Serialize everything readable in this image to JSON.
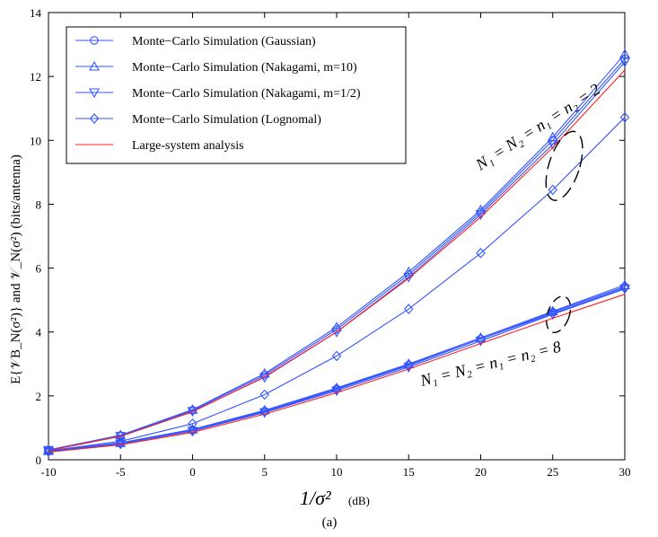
{
  "chart_data": {
    "type": "line",
    "xlabel_main": "1/σ²",
    "xlabel_unit": "(dB)",
    "ylabel": "E{𝒱B_N(σ²)}  and  𝒱_N(σ²)    (bits/antenna)",
    "ylabel_left": "E{𝒱",
    "ylabel_sub": "B",
    "ylabel_subsub": "N",
    "ylabel_rest": "(σ²)}  and  𝒱",
    "ylabel_sub2": "N",
    "ylabel_end": "(σ²)     (bits/antenna)",
    "caption": "(a)",
    "x": [
      -10,
      -5,
      0,
      5,
      10,
      15,
      20,
      25,
      30
    ],
    "xticks": [
      "-10",
      "-5",
      "0",
      "5",
      "10",
      "15",
      "20",
      "25",
      "30"
    ],
    "yticks": [
      "0",
      "2",
      "4",
      "6",
      "8",
      "10",
      "12",
      "14"
    ],
    "xlim": [
      -10,
      30
    ],
    "ylim": [
      0,
      14
    ],
    "legend": {
      "position": "top-left",
      "entries": [
        {
          "label": "Monte−Carlo Simulation (Gaussian)",
          "marker": "circle",
          "color": "#3355ff"
        },
        {
          "label": "Monte−Carlo Simulation (Nakagami, m=10)",
          "marker": "triangle-up",
          "color": "#3355ff"
        },
        {
          "label": "Monte−Carlo Simulation (Nakagami, m=1/2)",
          "marker": "triangle-down",
          "color": "#3355ff"
        },
        {
          "label": "Monte−Carlo Simulation (Lognomal)",
          "marker": "diamond",
          "color": "#3355ff"
        },
        {
          "label": "Large-system analysis",
          "marker": "none",
          "color": "#ff2020"
        }
      ]
    },
    "annotations": [
      {
        "text": "N₁ = N₂ = n₁ = n₂ = 2"
      },
      {
        "text": "N₁ = N₂ = n₁ = n₂ = 8"
      }
    ],
    "series": [
      {
        "name": "Gaussian N=2",
        "marker": "circle",
        "color": "#3355ff",
        "values": [
          0.31,
          0.76,
          1.55,
          2.65,
          4.08,
          5.8,
          7.75,
          10.0,
          12.55
        ]
      },
      {
        "name": "Nakagami m=10 N=2",
        "marker": "triangle-up",
        "color": "#3355ff",
        "values": [
          0.31,
          0.77,
          1.57,
          2.7,
          4.15,
          5.88,
          7.82,
          10.1,
          12.7
        ]
      },
      {
        "name": "Nakagami m=1/2 N=2",
        "marker": "triangle-down",
        "color": "#3355ff",
        "values": [
          0.3,
          0.74,
          1.52,
          2.58,
          4.0,
          5.72,
          7.68,
          9.88,
          12.45
        ]
      },
      {
        "name": "Lognormal N=2",
        "marker": "diamond",
        "color": "#3355ff",
        "values": [
          0.28,
          0.58,
          1.13,
          2.04,
          3.25,
          4.72,
          6.47,
          8.45,
          10.72
        ]
      },
      {
        "name": "Large-system N=2",
        "marker": "none",
        "color": "#ff2020",
        "values": [
          0.29,
          0.73,
          1.5,
          2.6,
          4.0,
          5.68,
          7.6,
          9.78,
          12.2
        ]
      },
      {
        "name": "Gaussian N=8",
        "marker": "circle",
        "color": "#3355ff",
        "values": [
          0.27,
          0.52,
          0.93,
          1.52,
          2.22,
          2.97,
          3.78,
          4.62,
          5.42
        ]
      },
      {
        "name": "Nakagami m=10 N=8",
        "marker": "triangle-up",
        "color": "#3355ff",
        "values": [
          0.28,
          0.53,
          0.95,
          1.55,
          2.25,
          3.0,
          3.82,
          4.65,
          5.47
        ]
      },
      {
        "name": "Nakagami m=1/2 N=8",
        "marker": "triangle-down",
        "color": "#3355ff",
        "values": [
          0.26,
          0.5,
          0.9,
          1.48,
          2.16,
          2.9,
          3.72,
          4.55,
          5.35
        ]
      },
      {
        "name": "Lognormal N=8",
        "marker": "diamond",
        "color": "#3355ff",
        "values": [
          0.26,
          0.5,
          0.9,
          1.5,
          2.2,
          2.95,
          3.78,
          4.58,
          5.38
        ]
      },
      {
        "name": "Large-system N=8",
        "marker": "none",
        "color": "#ff2020",
        "values": [
          0.24,
          0.47,
          0.86,
          1.43,
          2.1,
          2.84,
          3.64,
          4.43,
          5.18
        ]
      }
    ]
  }
}
